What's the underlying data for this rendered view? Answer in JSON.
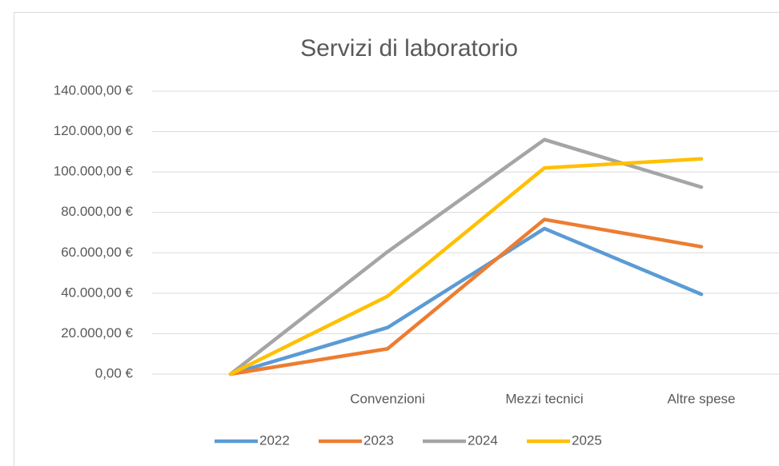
{
  "chart_data": {
    "type": "line",
    "title": "Servizi di laboratorio",
    "categories": [
      null,
      "Convenzioni",
      "Mezzi tecnici",
      "Altre spese"
    ],
    "series": [
      {
        "name": "2022",
        "color": "#5b9bd5",
        "values": [
          0,
          23000,
          72000,
          39500
        ]
      },
      {
        "name": "2023",
        "color": "#ed7d31",
        "values": [
          0,
          12500,
          76500,
          63000
        ]
      },
      {
        "name": "2024",
        "color": "#a5a5a5",
        "values": [
          0,
          60500,
          116000,
          92500
        ]
      },
      {
        "name": "2025",
        "color": "#ffc000",
        "values": [
          0,
          38500,
          102000,
          106500
        ]
      }
    ],
    "ylim": [
      0,
      140000
    ],
    "yticks": [
      {
        "value": 0,
        "label": "0,00 €"
      },
      {
        "value": 20000,
        "label": "20.000,00 €"
      },
      {
        "value": 40000,
        "label": "40.000,00 €"
      },
      {
        "value": 60000,
        "label": "60.000,00 €"
      },
      {
        "value": 80000,
        "label": "80.000,00 €"
      },
      {
        "value": 100000,
        "label": "100.000,00 €"
      },
      {
        "value": 120000,
        "label": "120.000,00 €"
      },
      {
        "value": 140000,
        "label": "140.000,00 €"
      }
    ],
    "grid": true,
    "legend": "bottom"
  }
}
